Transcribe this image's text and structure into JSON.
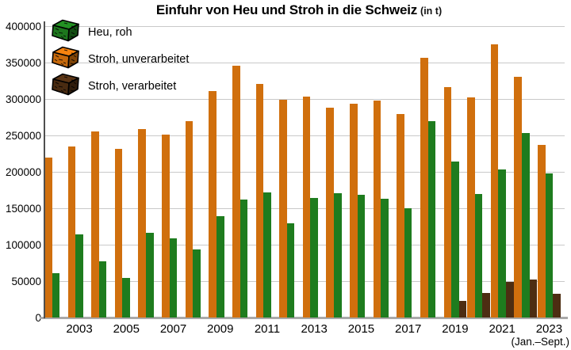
{
  "title": {
    "main": "Einfuhr von Heu und Stroh in die Schweiz",
    "unit": "(in t)"
  },
  "legend": {
    "items": [
      {
        "label": "Heu, roh",
        "color": "#1e7c1e",
        "icon": "hay-bale-icon"
      },
      {
        "label": "Stroh, unverarbeitet",
        "color": "#d06f0d",
        "icon": "hay-bale-icon"
      },
      {
        "label": "Stroh, verarbeitet",
        "color": "#4d2d12",
        "icon": "hay-bale-icon"
      }
    ]
  },
  "y_axis": {
    "tick_labels": [
      "0",
      "50000",
      "100000",
      "150000",
      "200000",
      "250000",
      "300000",
      "350000",
      "400000"
    ]
  },
  "x_axis": {
    "tick_labels": [
      "2003",
      "2005",
      "2007",
      "2009",
      "2011",
      "2013",
      "2015",
      "2017",
      "2019",
      "2021",
      "2023"
    ],
    "footnote": "(Jan.–Sept.)"
  },
  "chart_data": {
    "type": "bar",
    "title": "Einfuhr von Heu und Stroh in die Schweiz (in t)",
    "categories": [
      2002,
      2003,
      2004,
      2005,
      2006,
      2007,
      2008,
      2009,
      2010,
      2011,
      2012,
      2013,
      2014,
      2015,
      2016,
      2017,
      2018,
      2019,
      2020,
      2021,
      2022,
      2023
    ],
    "series": [
      {
        "key": "stroh-unverarbeitet",
        "name": "Stroh, unverarbeitet",
        "color": "#d06f0d",
        "values": [
          219000,
          234000,
          254000,
          230000,
          258000,
          250000,
          268000,
          310000,
          345000,
          320000,
          298000,
          302000,
          287000,
          292000,
          297000,
          278000,
          355000,
          315000,
          301000,
          374000,
          329000,
          236000
        ]
      },
      {
        "key": "heu-roh",
        "name": "Heu, roh",
        "color": "#1e7c1e",
        "values": [
          60000,
          113000,
          76000,
          53000,
          115000,
          108000,
          92000,
          138000,
          161000,
          171000,
          128000,
          163000,
          170000,
          167000,
          162000,
          149000,
          269000,
          213000,
          168000,
          202000,
          252000,
          197000
        ]
      },
      {
        "key": "stroh-verarbeitet",
        "name": "Stroh, verarbeitet",
        "color": "#4d2d12",
        "values": [
          null,
          null,
          null,
          null,
          null,
          null,
          null,
          null,
          null,
          null,
          null,
          null,
          null,
          null,
          null,
          null,
          null,
          22000,
          33000,
          48000,
          51000,
          32000
        ]
      }
    ],
    "ylim": [
      0,
      400000
    ],
    "ytick_step": 50000,
    "grid": true,
    "legend_position": "top-left",
    "note_last_category": "2023 covers Jan.–Sept. only"
  }
}
